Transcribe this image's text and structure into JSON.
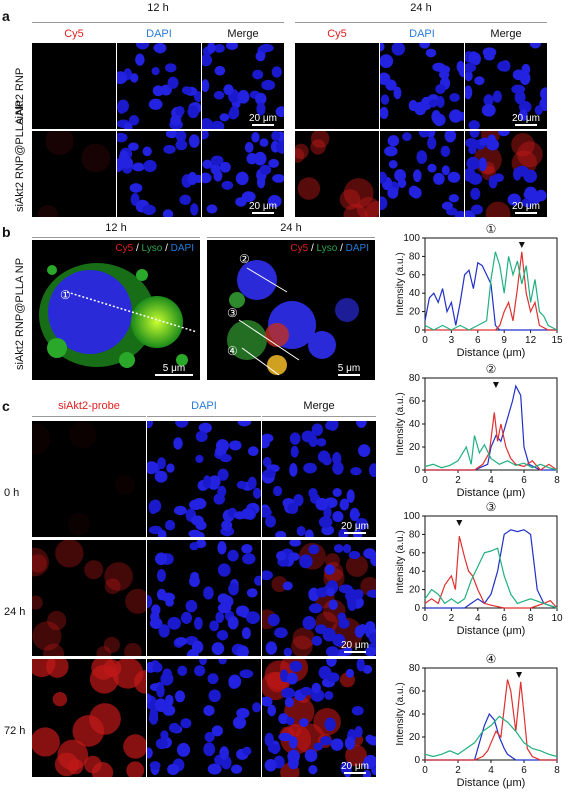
{
  "section_a": {
    "label": "a",
    "time_12": "12 h",
    "time_24": "24 h",
    "channels": [
      "Cy5",
      "DAPI",
      "Merge"
    ],
    "rows": [
      "siAkt2 RNP",
      "siAkt2 RNP@PLLA NP"
    ],
    "scalebar": "20 μm"
  },
  "section_b": {
    "label": "b",
    "time_12": "12 h",
    "time_24": "24 h",
    "row": "siAkt2 RNP@PLLA NP",
    "legend": {
      "cy5": "Cy5",
      "sep1": " / ",
      "lyso": "Lyso",
      "sep2": " / ",
      "dapi": "DAPI"
    },
    "scalebar": "5 μm",
    "markers": [
      "①",
      "②",
      "③",
      "④"
    ]
  },
  "section_c": {
    "label": "c",
    "channels": [
      "siAkt2-probe",
      "DAPI",
      "Merge"
    ],
    "rows": [
      "0 h",
      "24 h",
      "72 h"
    ],
    "scalebar": "20 μm"
  },
  "chart_data": [
    {
      "type": "line",
      "title": "①",
      "xlabel": "Distance (μm)",
      "ylabel": "Intensity (a.u.)",
      "xlim": [
        0,
        15
      ],
      "ylim": [
        0,
        100
      ],
      "xticks": [
        0,
        3,
        6,
        9,
        12,
        15
      ],
      "yticks": [
        0,
        20,
        40,
        60,
        80,
        100
      ],
      "arrow_x": 11,
      "series": [
        {
          "color": "#2030c8",
          "x": [
            0,
            0.5,
            1,
            1.5,
            2,
            2.5,
            3,
            3.5,
            4,
            4.5,
            5,
            5.5,
            6,
            6.5,
            7,
            7.5,
            8,
            8.5,
            9,
            9.5,
            10,
            11,
            12,
            13,
            14,
            15
          ],
          "y": [
            10,
            35,
            40,
            30,
            45,
            20,
            30,
            5,
            30,
            60,
            65,
            45,
            73,
            70,
            60,
            50,
            5,
            0,
            0,
            0,
            0,
            0,
            0,
            0,
            0,
            0
          ]
        },
        {
          "color": "#e03030",
          "x": [
            0,
            2,
            4,
            6,
            8,
            8.5,
            9,
            9.5,
            10,
            10.5,
            11,
            11.5,
            12,
            12.5,
            13,
            14,
            15
          ],
          "y": [
            0,
            0,
            0,
            0,
            0,
            5,
            20,
            30,
            10,
            45,
            85,
            40,
            20,
            30,
            5,
            0,
            0
          ]
        },
        {
          "color": "#20b080",
          "x": [
            0,
            1,
            2,
            3,
            4,
            5,
            6,
            7,
            7.5,
            8,
            8.5,
            9,
            9.5,
            10,
            10.5,
            11,
            11.5,
            12,
            12.5,
            13,
            13.5,
            14,
            15
          ],
          "y": [
            5,
            0,
            5,
            0,
            5,
            0,
            5,
            10,
            55,
            85,
            70,
            40,
            80,
            60,
            75,
            50,
            70,
            30,
            55,
            20,
            15,
            5,
            0
          ]
        }
      ]
    },
    {
      "type": "line",
      "title": "②",
      "xlabel": "Distance (μm)",
      "ylabel": "Intensity (a.u.)",
      "xlim": [
        0,
        8
      ],
      "ylim": [
        0,
        80
      ],
      "xticks": [
        0,
        2,
        4,
        6,
        8
      ],
      "yticks": [
        0,
        20,
        40,
        60,
        80
      ],
      "arrow_x": 4.3,
      "series": [
        {
          "color": "#2030c8",
          "x": [
            0,
            1,
            2,
            3,
            3.8,
            4,
            4.3,
            4.6,
            5,
            5.3,
            5.5,
            5.8,
            6,
            6.3,
            7,
            8
          ],
          "y": [
            0,
            0,
            0,
            0,
            5,
            20,
            30,
            25,
            45,
            60,
            73,
            65,
            20,
            5,
            0,
            0
          ]
        },
        {
          "color": "#e03030",
          "x": [
            0,
            1,
            2,
            3,
            3.5,
            3.9,
            4.2,
            4.4,
            4.6,
            4.9,
            5.2,
            5.5,
            6,
            6.5,
            7,
            7.5,
            8
          ],
          "y": [
            0,
            0,
            0,
            0,
            5,
            15,
            50,
            25,
            40,
            20,
            10,
            5,
            3,
            8,
            0,
            5,
            0
          ]
        },
        {
          "color": "#20b080",
          "x": [
            0,
            0.5,
            1,
            1.5,
            2,
            2.5,
            2.8,
            3,
            3.3,
            3.6,
            4,
            4.5,
            5,
            5.5,
            6,
            6.5,
            7,
            7.5,
            8
          ],
          "y": [
            3,
            5,
            2,
            4,
            8,
            20,
            5,
            30,
            15,
            22,
            10,
            5,
            8,
            4,
            6,
            2,
            5,
            2,
            0
          ]
        }
      ]
    },
    {
      "type": "line",
      "title": "③",
      "xlabel": "Distance (μm)",
      "ylabel": "Intensity (a.u.)",
      "xlim": [
        0,
        10
      ],
      "ylim": [
        0,
        100
      ],
      "xticks": [
        0,
        2,
        4,
        6,
        8,
        10
      ],
      "yticks": [
        0,
        20,
        40,
        60,
        80,
        100
      ],
      "arrow_x": 2.6,
      "series": [
        {
          "color": "#2030c8",
          "x": [
            0,
            1,
            2,
            3,
            3.5,
            4,
            4.5,
            5,
            5.5,
            6,
            6.5,
            7,
            7.5,
            8,
            8.5,
            9,
            10
          ],
          "y": [
            0,
            0,
            0,
            0,
            5,
            10,
            5,
            15,
            40,
            80,
            85,
            83,
            85,
            80,
            20,
            5,
            0
          ]
        },
        {
          "color": "#e03030",
          "x": [
            0,
            0.5,
            1,
            1.5,
            2,
            2.3,
            2.6,
            3,
            3.3,
            3.6,
            4,
            4.5,
            5,
            6,
            7,
            8,
            9,
            9.5,
            10
          ],
          "y": [
            5,
            10,
            5,
            25,
            35,
            20,
            78,
            55,
            40,
            35,
            20,
            5,
            3,
            0,
            0,
            0,
            5,
            8,
            0
          ]
        },
        {
          "color": "#20b080",
          "x": [
            0,
            0.5,
            1,
            1.5,
            2,
            2.5,
            3,
            3.5,
            4,
            4.5,
            5,
            5.5,
            6,
            6.5,
            7,
            8,
            9,
            10
          ],
          "y": [
            10,
            20,
            15,
            5,
            10,
            5,
            10,
            30,
            45,
            60,
            62,
            65,
            35,
            15,
            5,
            10,
            5,
            0
          ]
        }
      ]
    },
    {
      "type": "line",
      "title": "④",
      "xlabel": "Distance (μm)",
      "ylabel": "Intensity (a.u.)",
      "xlim": [
        0,
        8
      ],
      "ylim": [
        0,
        80
      ],
      "xticks": [
        0,
        2,
        4,
        6,
        8
      ],
      "yticks": [
        0,
        20,
        40,
        60,
        80
      ],
      "arrow_x": 5.7,
      "series": [
        {
          "color": "#2030c8",
          "x": [
            0,
            1,
            2,
            3,
            3.3,
            3.6,
            3.9,
            4.2,
            4.5,
            4.8,
            5,
            5.5,
            6,
            7,
            8
          ],
          "y": [
            0,
            0,
            0,
            0,
            15,
            30,
            40,
            35,
            20,
            10,
            5,
            0,
            0,
            0,
            0
          ]
        },
        {
          "color": "#e03030",
          "x": [
            0,
            1,
            2,
            3,
            3.5,
            3.8,
            4,
            4.3,
            4.6,
            5,
            5.2,
            5.5,
            5.8,
            6,
            6.2,
            6.5,
            7,
            8
          ],
          "y": [
            0,
            0,
            0,
            0,
            3,
            8,
            15,
            25,
            20,
            70,
            60,
            25,
            68,
            40,
            10,
            3,
            0,
            0
          ]
        },
        {
          "color": "#20b080",
          "x": [
            0,
            0.5,
            1,
            1.5,
            2,
            2.5,
            3,
            3.5,
            4,
            4.5,
            5,
            5.5,
            6,
            6.5,
            7,
            7.5,
            8
          ],
          "y": [
            5,
            3,
            5,
            8,
            5,
            10,
            15,
            25,
            30,
            38,
            33,
            25,
            15,
            10,
            8,
            5,
            3
          ]
        }
      ]
    }
  ]
}
